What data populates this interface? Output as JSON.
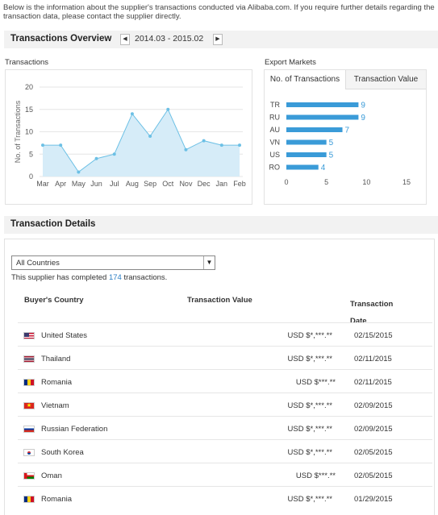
{
  "intro_text": "Below is the information about the supplier's transactions conducted via Alibaba.com. If you require further details regarding the transaction data, please contact the supplier directly.",
  "overview": {
    "title": "Transactions Overview",
    "period": "2014.03 - 2015.02",
    "prev_icon": "chevron-left-icon",
    "next_icon": "chevron-right-icon"
  },
  "transactions_panel": {
    "label": "Transactions"
  },
  "export_panel": {
    "label": "Export Markets",
    "tabs": [
      "No. of Transactions",
      "Transaction Value"
    ],
    "active_tab": 0
  },
  "chart_data": [
    {
      "type": "area",
      "title": "Transactions",
      "ylabel": "No. of Transactions",
      "xlabel": "",
      "categories": [
        "Mar",
        "Apr",
        "May",
        "Jun",
        "Jul",
        "Aug",
        "Sep",
        "Oct",
        "Nov",
        "Dec",
        "Jan",
        "Feb"
      ],
      "values": [
        7,
        7,
        1,
        4,
        5,
        14,
        9,
        15,
        6,
        8,
        7,
        7
      ],
      "ylim": [
        0,
        20
      ],
      "yticks": [
        0,
        5,
        10,
        15,
        20
      ],
      "grid": true,
      "color": "#6cc0e5",
      "fill": "#d6ecf8"
    },
    {
      "type": "bar",
      "orientation": "horizontal",
      "title": "Export Markets",
      "categories": [
        "TR",
        "RU",
        "AU",
        "VN",
        "US",
        "RO"
      ],
      "values": [
        9,
        9,
        7,
        5,
        5,
        4
      ],
      "xlim": [
        0,
        15
      ],
      "xticks": [
        0,
        5,
        10,
        15
      ],
      "color": "#3a9bd8"
    }
  ],
  "details": {
    "title": "Transaction Details",
    "filter": {
      "selected": "All Countries"
    },
    "summary_prefix": "This supplier has completed",
    "summary_count": "174",
    "summary_suffix": "transactions.",
    "headers": {
      "country": "Buyer's Country",
      "value": "Transaction Value",
      "date_line1": "Transaction",
      "date_line2": "Date"
    },
    "rows": [
      {
        "country": "United States",
        "value": "USD $*,***.**",
        "date": "02/15/2015",
        "flag": "us-flag-icon"
      },
      {
        "country": "Thailand",
        "value": "USD $*,***.**",
        "date": "02/11/2015",
        "flag": "th-flag-icon"
      },
      {
        "country": "Romania",
        "value": "USD $***.**",
        "date": "02/11/2015",
        "flag": "ro-flag-icon"
      },
      {
        "country": "Vietnam",
        "value": "USD $*,***.**",
        "date": "02/09/2015",
        "flag": "vn-flag-icon"
      },
      {
        "country": "Russian Federation",
        "value": "USD $*,***.**",
        "date": "02/09/2015",
        "flag": "ru-flag-icon"
      },
      {
        "country": "South Korea",
        "value": "USD $*,***.**",
        "date": "02/05/2015",
        "flag": "kr-flag-icon"
      },
      {
        "country": "Oman",
        "value": "USD $***.**",
        "date": "02/05/2015",
        "flag": "om-flag-icon"
      },
      {
        "country": "Romania",
        "value": "USD $*,***.**",
        "date": "01/29/2015",
        "flag": "ro-flag-icon"
      }
    ]
  }
}
